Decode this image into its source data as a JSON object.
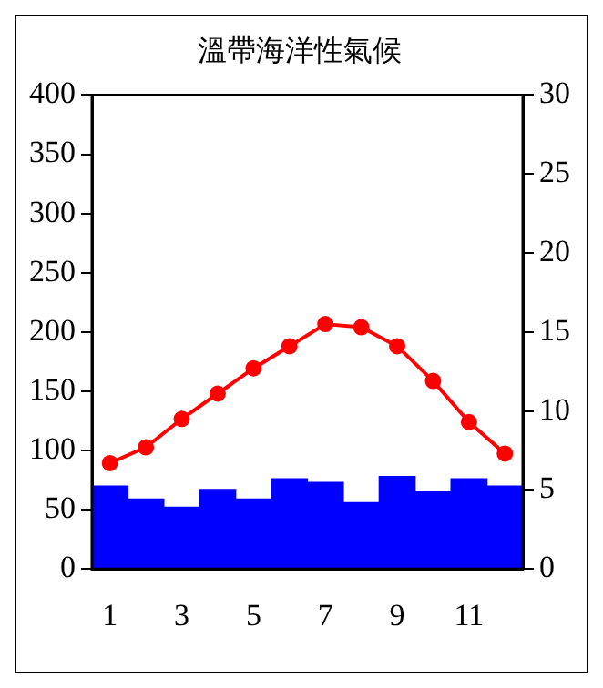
{
  "chart_data": {
    "type": "bar",
    "title": "溫帶海洋性氣候",
    "categories": [
      "1",
      null,
      "3",
      null,
      "5",
      null,
      "7",
      null,
      "9",
      null,
      "11",
      null
    ],
    "series": [
      {
        "color": "#0000ff",
        "values": [
          70,
          59,
          52,
          67,
          59,
          76,
          73,
          56,
          78,
          65,
          76,
          70
        ]
      },
      {
        "type": "line",
        "axis": "y2",
        "color": "#ff0000",
        "marker": "circle",
        "values": [
          6.7,
          7.7,
          9.5,
          11.1,
          12.7,
          14.1,
          15.5,
          15.3,
          14.1,
          11.9,
          9.3,
          7.3
        ]
      }
    ],
    "ylim": [
      0,
      400
    ],
    "yticks": [
      0,
      50,
      100,
      150,
      200,
      250,
      300,
      350,
      400
    ],
    "y2lim": [
      0,
      30
    ],
    "y2ticks": [
      0,
      5,
      10,
      15,
      20,
      25,
      30
    ],
    "grid": false,
    "legend": false
  }
}
